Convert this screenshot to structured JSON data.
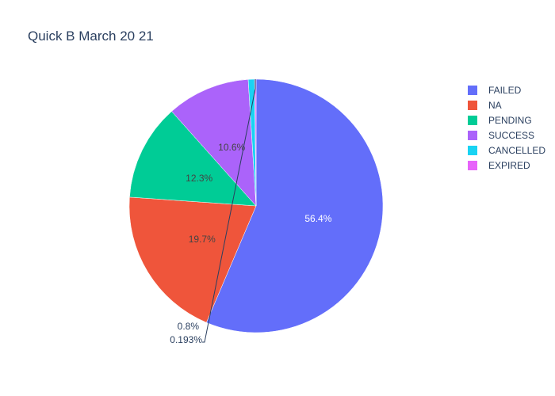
{
  "chart_data": {
    "type": "pie",
    "title": "Quick B March 20 21",
    "labels": [
      "FAILED",
      "NA",
      "PENDING",
      "SUCCESS",
      "CANCELLED",
      "EXPIRED"
    ],
    "values": [
      56.4,
      19.7,
      12.3,
      10.6,
      0.8,
      0.193
    ],
    "value_labels": [
      "56.4%",
      "19.7%",
      "12.3%",
      "10.6%",
      "0.8%",
      "0.193%"
    ],
    "colors": [
      "#636efa",
      "#ef553b",
      "#00cc96",
      "#ab63fa",
      "#19d3f3",
      "#e763fa"
    ],
    "legend_position": "right",
    "direction": "clockwise",
    "sort": "descending"
  }
}
